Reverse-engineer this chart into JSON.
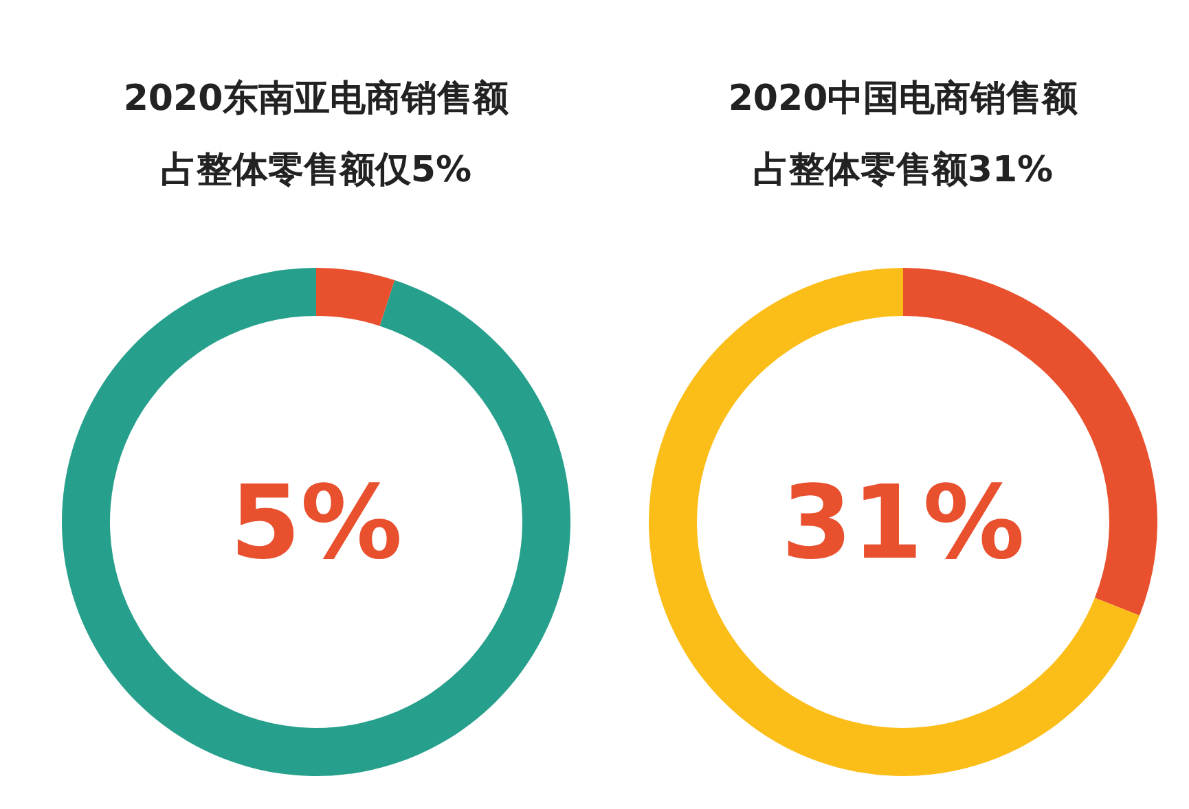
{
  "chart_data": [
    {
      "type": "donut",
      "title": "2020东南亚电商销售额",
      "subtitle": "占整体零售额仅5%",
      "categories": [
        null,
        null
      ],
      "values": [
        5,
        95
      ],
      "colors": [
        "#e8502e",
        "#26a08c"
      ],
      "annotations": [
        "5%"
      ]
    },
    {
      "type": "donut",
      "title": "2020中国电商销售额",
      "subtitle": "占整体零售额31%",
      "categories": [
        null,
        null
      ],
      "values": [
        31,
        69
      ],
      "colors": [
        "#e8502e",
        "#fbbd18"
      ],
      "annotations": [
        "31%"
      ]
    }
  ]
}
